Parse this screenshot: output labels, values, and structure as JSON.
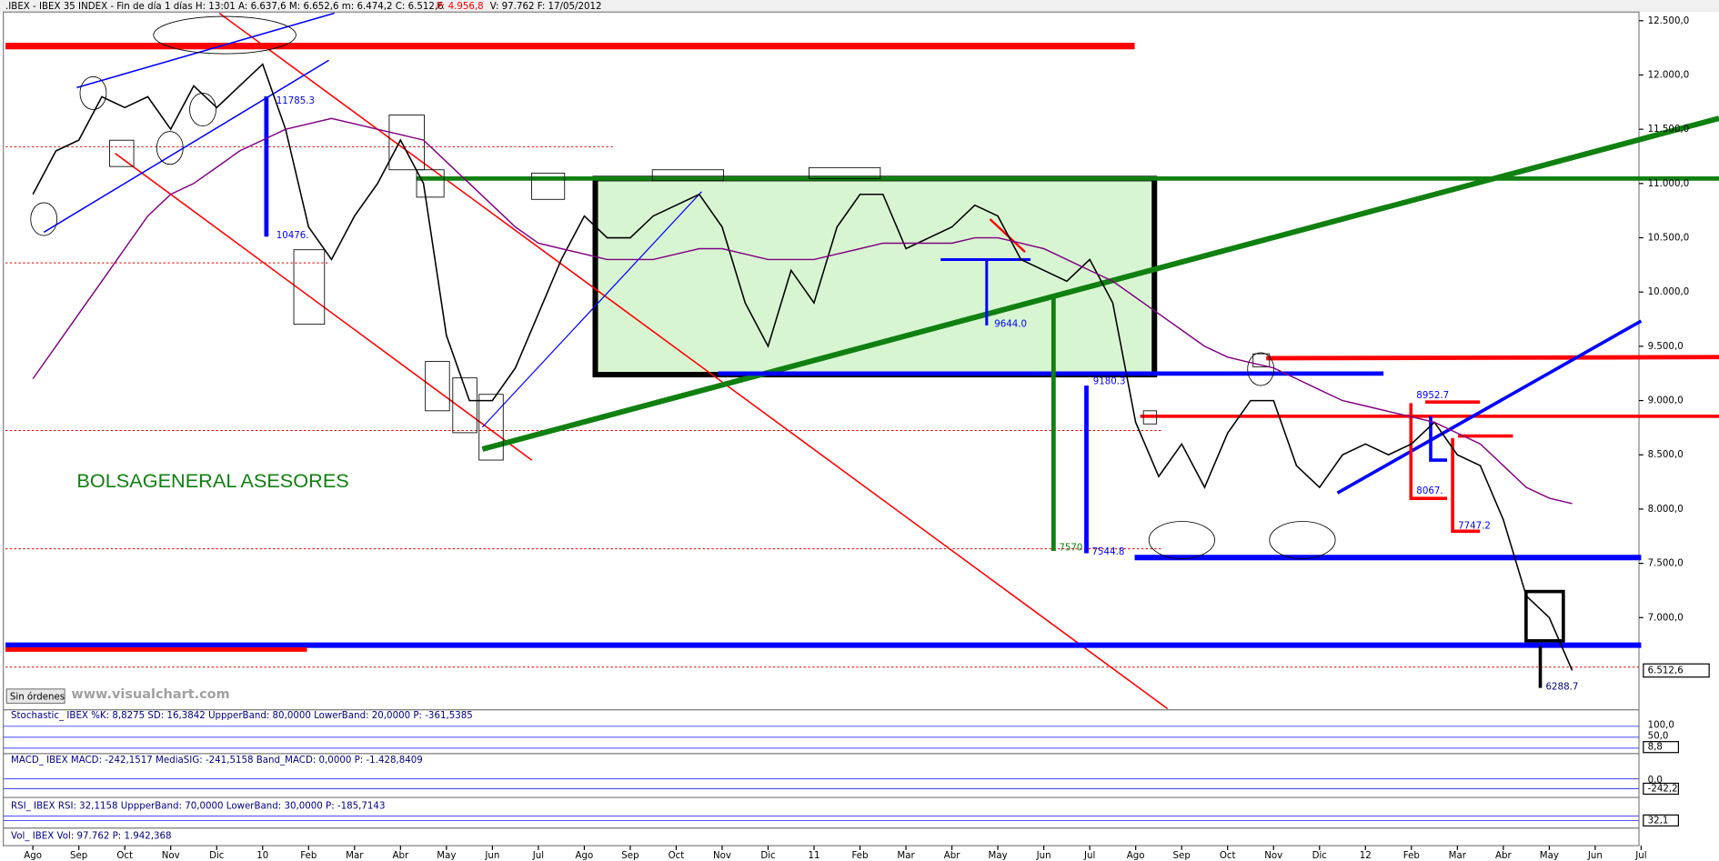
{
  "header": [
    ".IBEX - IBEX 35 INDEX - Fin de día 1 días  H: 13:01  A: 6.637,6  M: 6.652,6  m: 6.474,2  C: 6.512,6",
    "P: 4.956,8",
    "V: 97.762  F: 17/05/2012"
  ],
  "watermark": "BOLSAGENERAL ASESORES",
  "site": "www.visualchart.com",
  "status": "Sin órdenes",
  "level_labels": [
    "11785.3",
    "10476.",
    "9644.0",
    "9180.3",
    "7570",
    "7544.8",
    "8952.7",
    "8067.",
    "7747.2",
    "6288.7"
  ],
  "indicators": [
    {
      "title": "Stochastic_ IBEX  %K: 8,8275  SD: 16,3842  UppperBand: 80,0000  LowerBand: 20,0000  P: -361,5385",
      "ticks": [
        "100,0",
        "50,0",
        "8,8"
      ]
    },
    {
      "title": "MACD_ IBEX  MACD: -242,1517  MediaSIG: -241,5158  Band_MACD: 0,0000  P: -1.428,8409",
      "ticks": [
        "0,0",
        "-242,2"
      ]
    },
    {
      "title": "RSI_ IBEX  RSI: 32,1158  UppperBand: 70,0000  LowerBand: 30,0000  P: -185,7143",
      "ticks": [
        "32,1"
      ]
    },
    {
      "title": "Vol_ IBEX  Vol: 97.762  P: 1.942,368",
      "ticks": []
    }
  ],
  "chart_data": {
    "type": "line",
    "categories": [
      "Ago",
      null,
      "Sep",
      null,
      "Oct",
      null,
      "Nov",
      null,
      "Dic",
      null,
      "10",
      null,
      "Feb",
      null,
      "Mar",
      null,
      "Abr",
      null,
      "May",
      null,
      "Jun",
      null,
      "Jul",
      null,
      "Ago",
      null,
      "Sep",
      null,
      "Oct",
      null,
      "Nov",
      null,
      "Dic",
      null,
      "11",
      null,
      "Feb",
      null,
      "Mar",
      null,
      "Abr",
      null,
      "May",
      null,
      "Jun",
      null,
      "Jul",
      null,
      "Ago",
      null,
      "Sep",
      null,
      "Oct",
      null,
      "Nov",
      null,
      "Dic",
      null,
      "12",
      null,
      "Feb",
      null,
      "Mar",
      null,
      "Abr",
      null,
      "May",
      null,
      "Jun",
      null,
      "Jul"
    ],
    "series": [
      {
        "color": "#000000",
        "values": [
          10900,
          11300,
          11400,
          11800,
          11700,
          11800,
          11500,
          11900,
          11700,
          11900,
          12100,
          11500,
          10600,
          10300,
          10700,
          11000,
          11400,
          11000,
          9600,
          9000,
          9000,
          9300,
          9800,
          10300,
          10700,
          10500,
          10500,
          10700,
          10800,
          10900,
          10600,
          9900,
          9500,
          10200,
          9900,
          10600,
          10900,
          10900,
          10400,
          10500,
          10600,
          10800,
          10700,
          10300,
          10200,
          10100,
          10300,
          9900,
          8800,
          8300,
          8600,
          8200,
          8700,
          9000,
          9000,
          8400,
          8200,
          8500,
          8600,
          8500,
          8600,
          8800,
          8500,
          8400,
          7900,
          7200,
          7000,
          6512.6,
          null,
          null,
          null
        ]
      },
      {
        "color": "#800080",
        "values": [
          9200,
          9500,
          9800,
          10100,
          10400,
          10700,
          10900,
          11000,
          11150,
          11300,
          11400,
          11500,
          11550,
          11600,
          11550,
          11500,
          11450,
          11400,
          11200,
          11000,
          10800,
          10600,
          10450,
          10400,
          10350,
          10300,
          10300,
          10300,
          10350,
          10400,
          10400,
          10350,
          10300,
          10300,
          10300,
          10350,
          10400,
          10450,
          10450,
          10450,
          10450,
          10500,
          10500,
          10450,
          10400,
          10300,
          10200,
          10100,
          9950,
          9800,
          9650,
          9500,
          9400,
          9350,
          9300,
          9200,
          9100,
          9000,
          8950,
          8900,
          8850,
          8800,
          8700,
          8600,
          8400,
          8200,
          8100,
          8050,
          null,
          null,
          null
        ]
      }
    ],
    "ylim": [
      6150,
      12580
    ],
    "yticks": [
      {
        "value": 7000,
        "label": "7.000,0"
      },
      {
        "value": 7500,
        "label": "7.500,0"
      },
      {
        "value": 8000,
        "label": "8.000,0"
      },
      {
        "value": 8500,
        "label": "8.500,0"
      },
      {
        "value": 9000,
        "label": "9.000,0"
      },
      {
        "value": 9500,
        "label": "9.500,0"
      },
      {
        "value": 10000,
        "label": "10.000,0"
      },
      {
        "value": 10500,
        "label": "10.500,0"
      },
      {
        "value": 11000,
        "label": "11.000,0"
      },
      {
        "value": 11500,
        "label": "11.500,0"
      },
      {
        "value": 12000,
        "label": "12.000,0"
      },
      {
        "value": 12500,
        "label": "12.500,0"
      }
    ],
    "last_price": {
      "value": 6512.6,
      "label": "6.512,6"
    }
  }
}
